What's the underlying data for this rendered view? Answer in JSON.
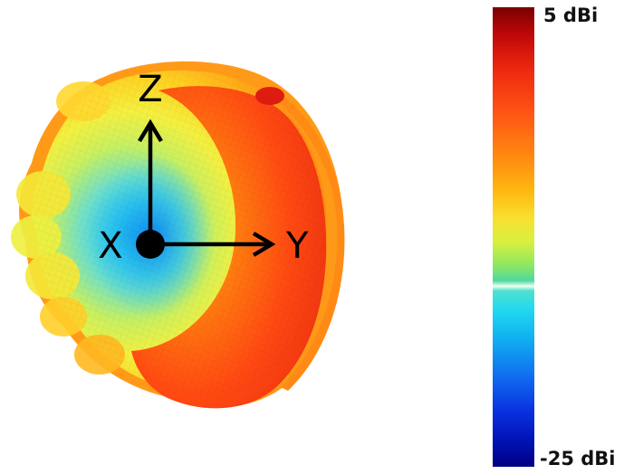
{
  "colorbar": {
    "max_label": "5 dBi",
    "min_label": "-25 dBi",
    "max_value": 5,
    "min_value": -25,
    "unit": "dBi",
    "colors": [
      "#7f0000",
      "#e02010",
      "#ff4a14",
      "#ff8a10",
      "#ffc010",
      "#f2f040",
      "#b8f040",
      "#70e070",
      "#d8ffd0",
      "#30e0e0",
      "#10b8f0",
      "#1060f0",
      "#0010d8",
      "#000090"
    ]
  },
  "axes": {
    "x_label": "X",
    "y_label": "Y",
    "z_label": "Z"
  }
}
